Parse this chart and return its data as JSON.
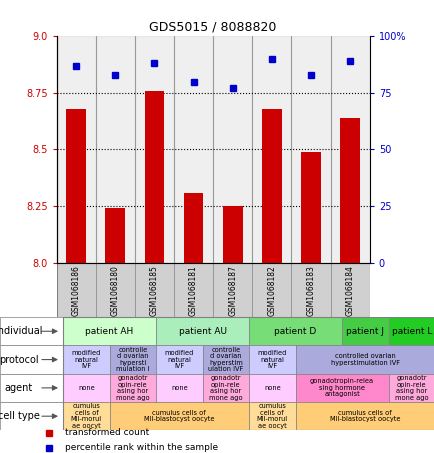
{
  "title": "GDS5015 / 8088820",
  "samples": [
    "GSM1068186",
    "GSM1068180",
    "GSM1068185",
    "GSM1068181",
    "GSM1068187",
    "GSM1068182",
    "GSM1068183",
    "GSM1068184"
  ],
  "transformed_counts": [
    8.68,
    8.24,
    8.76,
    8.31,
    8.25,
    8.68,
    8.49,
    8.64
  ],
  "percentile_ranks": [
    87,
    83,
    88,
    80,
    77,
    90,
    83,
    89
  ],
  "ylim": [
    8.0,
    9.0
  ],
  "y2lim": [
    0,
    100
  ],
  "yticks": [
    8.0,
    8.25,
    8.5,
    8.75,
    9.0
  ],
  "y2ticks": [
    0,
    25,
    50,
    75,
    100
  ],
  "bar_color": "#cc0000",
  "dot_color": "#0000cc",
  "sample_bg": "#d0d0d0",
  "individual_groups": [
    {
      "text": "patient AH",
      "cols": [
        0,
        1
      ],
      "color": "#ccffcc"
    },
    {
      "text": "patient AU",
      "cols": [
        2,
        3
      ],
      "color": "#aaeebb"
    },
    {
      "text": "patient D",
      "cols": [
        4,
        5
      ],
      "color": "#77dd77"
    },
    {
      "text": "patient J",
      "cols": [
        6
      ],
      "color": "#44cc44"
    },
    {
      "text": "patient L",
      "cols": [
        7
      ],
      "color": "#22cc22"
    }
  ],
  "protocol_groups": [
    {
      "text": "modified\nnatural\nIVF",
      "cols": [
        0
      ],
      "color": "#ccccff"
    },
    {
      "text": "controlle\nd ovarian\nhypersti\nmulation I",
      "cols": [
        1
      ],
      "color": "#aaaadd"
    },
    {
      "text": "modified\nnatural\nIVF",
      "cols": [
        2
      ],
      "color": "#ccccff"
    },
    {
      "text": "controlle\nd ovarian\nhyperstim\nulation IVF",
      "cols": [
        3
      ],
      "color": "#aaaadd"
    },
    {
      "text": "modified\nnatural\nIVF",
      "cols": [
        4
      ],
      "color": "#ccccff"
    },
    {
      "text": "controlled ovarian\nhyperstimulation IVF",
      "cols": [
        5,
        6,
        7
      ],
      "color": "#aaaadd"
    }
  ],
  "agent_groups": [
    {
      "text": "none",
      "cols": [
        0
      ],
      "color": "#ffccff"
    },
    {
      "text": "gonadotr\nopin-rele\nasing hor\nmone ago",
      "cols": [
        1
      ],
      "color": "#ffaadd"
    },
    {
      "text": "none",
      "cols": [
        2
      ],
      "color": "#ffccff"
    },
    {
      "text": "gonadotr\nopin-rele\nasing hor\nmone ago",
      "cols": [
        3
      ],
      "color": "#ffaadd"
    },
    {
      "text": "none",
      "cols": [
        4
      ],
      "color": "#ffccff"
    },
    {
      "text": "gonadotropin-relea\nsing hormone\nantagonist",
      "cols": [
        5,
        6
      ],
      "color": "#ff88cc"
    },
    {
      "text": "gonadotr\nopin-rele\nasing hor\nmone ago",
      "cols": [
        7
      ],
      "color": "#ffaadd"
    }
  ],
  "cell_type_groups": [
    {
      "text": "cumulus\ncells of\nMII-morul\nae oocyt",
      "cols": [
        0
      ],
      "color": "#ffdd99"
    },
    {
      "text": "cumulus cells of\nMII-blastocyst oocyte",
      "cols": [
        1,
        2,
        3
      ],
      "color": "#ffcc77"
    },
    {
      "text": "cumulus\ncells of\nMII-morul\nae oocyt",
      "cols": [
        4
      ],
      "color": "#ffdd99"
    },
    {
      "text": "cumulus cells of\nMII-blastocyst oocyte",
      "cols": [
        5,
        6,
        7
      ],
      "color": "#ffcc77"
    }
  ],
  "row_labels": [
    "individual",
    "protocol",
    "agent",
    "cell type"
  ],
  "legend_bar_label": "transformed count",
  "legend_dot_label": "percentile rank within the sample"
}
